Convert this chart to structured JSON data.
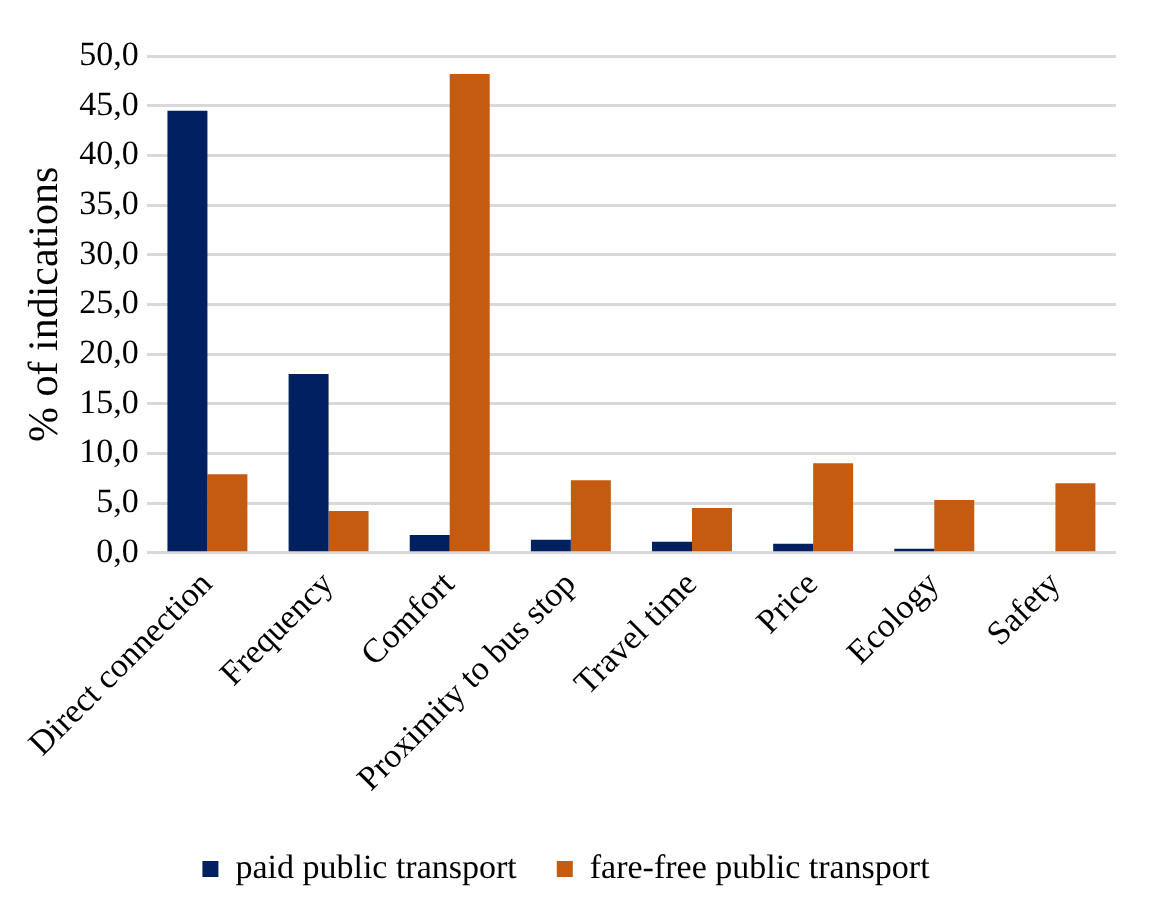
{
  "chart_data": {
    "type": "bar",
    "ylabel": "% of indications",
    "categories": [
      "Direct connection",
      "Frequency",
      "Comfort",
      "Proximity to bus stop",
      "Travel time",
      "Price",
      "Ecology",
      "Safety"
    ],
    "series": [
      {
        "name": "paid public transport",
        "color": "#002060",
        "values": [
          44.5,
          18.0,
          1.8,
          1.3,
          1.1,
          0.9,
          0.4,
          0
        ]
      },
      {
        "name": "fare-free public transport",
        "color": "#c55a11",
        "values": [
          7.9,
          4.2,
          48.2,
          7.3,
          4.5,
          9.0,
          5.3,
          7.0
        ]
      }
    ],
    "ylim": [
      0,
      50
    ],
    "yticks": [
      {
        "value": 0,
        "label": "0,0"
      },
      {
        "value": 5,
        "label": "5,0"
      },
      {
        "value": 10,
        "label": "10,0"
      },
      {
        "value": 15,
        "label": "15,0"
      },
      {
        "value": 20,
        "label": "20,0"
      },
      {
        "value": 25,
        "label": "25,0"
      },
      {
        "value": 30,
        "label": "30,0"
      },
      {
        "value": 35,
        "label": "35,0"
      },
      {
        "value": 40,
        "label": "40,0"
      },
      {
        "value": 45,
        "label": "45,0"
      },
      {
        "value": 50,
        "label": "50,0"
      }
    ],
    "grid": "y",
    "legend": "bottom"
  }
}
